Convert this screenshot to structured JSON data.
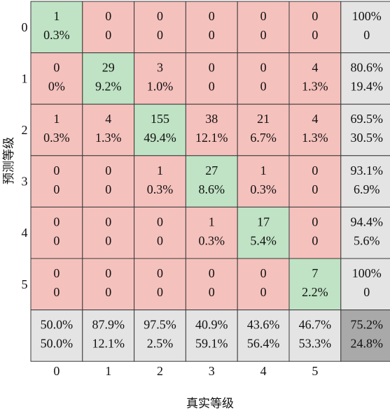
{
  "chart_data": {
    "type": "heatmap",
    "xlabel": "真实等级",
    "ylabel": "预测等级",
    "x_tick_labels": [
      "0",
      "1",
      "2",
      "3",
      "4",
      "5"
    ],
    "y_tick_labels": [
      "0",
      "1",
      "2",
      "3",
      "4",
      "5"
    ],
    "counts": [
      [
        1,
        0,
        0,
        0,
        0,
        0
      ],
      [
        0,
        29,
        3,
        0,
        0,
        4
      ],
      [
        1,
        4,
        155,
        38,
        21,
        4
      ],
      [
        0,
        0,
        1,
        27,
        1,
        0
      ],
      [
        0,
        0,
        0,
        1,
        17,
        0
      ],
      [
        0,
        0,
        0,
        0,
        0,
        7
      ]
    ],
    "percentages": [
      [
        "0.3%",
        "0",
        "0",
        "0",
        "0",
        "0"
      ],
      [
        "0%",
        "9.2%",
        "1.0%",
        "0",
        "0",
        "1.3%"
      ],
      [
        "0.3%",
        "1.3%",
        "49.4%",
        "12.1%",
        "6.7%",
        "1.3%"
      ],
      [
        "0",
        "0",
        "0.3%",
        "8.6%",
        "0.3%",
        "0"
      ],
      [
        "0",
        "0",
        "0",
        "0.3%",
        "5.4%",
        "0"
      ],
      [
        "0",
        "0",
        "0",
        "0",
        "0",
        "2.2%"
      ]
    ],
    "row_summary": [
      [
        "100%",
        "0"
      ],
      [
        "80.6%",
        "19.4%"
      ],
      [
        "69.5%",
        "30.5%"
      ],
      [
        "93.1%",
        "6.9%"
      ],
      [
        "94.4%",
        "5.6%"
      ],
      [
        "100%",
        "0"
      ]
    ],
    "column_summary": [
      [
        "50.0%",
        "50.0%"
      ],
      [
        "87.9%",
        "12.1%"
      ],
      [
        "97.5%",
        "2.5%"
      ],
      [
        "40.9%",
        "59.1%"
      ],
      [
        "43.6%",
        "56.4%"
      ],
      [
        "46.7%",
        "53.3%"
      ]
    ],
    "overall": [
      "75.2%",
      "24.8%"
    ],
    "colors": {
      "correct": "#bfe3c4",
      "incorrect": "#f5c1bd",
      "summary": "#e4e4e4",
      "overall": "#a9a9a9",
      "grid": "#3a3a3a"
    }
  }
}
